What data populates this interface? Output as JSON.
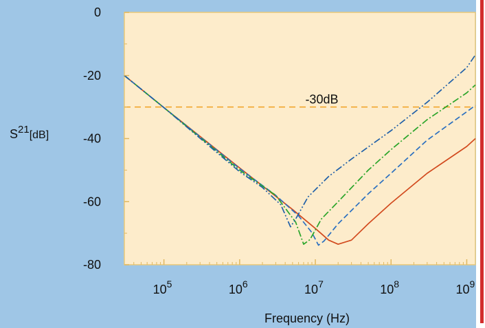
{
  "chart_data": {
    "type": "line",
    "xlabel": "Frequency (Hz)",
    "ylabel": "S21[dB]",
    "ylabel_parts": {
      "base": "S",
      "sup": "21",
      "unit": "[dB]"
    },
    "xscale": "log",
    "xlim": [
      30000,
      1300000000
    ],
    "ylim": [
      -80,
      0
    ],
    "x_ticks": [
      {
        "value": 100000,
        "base": "10",
        "exp": "5"
      },
      {
        "value": 1000000,
        "base": "10",
        "exp": "6"
      },
      {
        "value": 10000000,
        "base": "10",
        "exp": "7"
      },
      {
        "value": 100000000,
        "base": "10",
        "exp": "8"
      },
      {
        "value": 1000000000,
        "base": "10",
        "exp": "9"
      }
    ],
    "y_ticks": [
      0,
      -20,
      -40,
      -60,
      -80
    ],
    "grid": false,
    "reference_line": {
      "y": -30,
      "label": "-30dB",
      "label_x": 15000000,
      "color": "#f0a020"
    },
    "series": [
      {
        "color": "#d24a1e",
        "dash": "solid",
        "points": [
          [
            30000,
            -20
          ],
          [
            100000,
            -30.2
          ],
          [
            1000000,
            -49.3
          ],
          [
            5000000,
            -62.5
          ],
          [
            10000000,
            -68.5
          ],
          [
            15000000,
            -72.2
          ],
          [
            20000000,
            -73.5
          ],
          [
            30000000,
            -72.2
          ],
          [
            50000000,
            -67
          ],
          [
            100000000,
            -60.5
          ],
          [
            300000000,
            -51
          ],
          [
            1000000000,
            -42.5
          ],
          [
            1300000000,
            -40
          ]
        ]
      },
      {
        "color": "#2a6fc0",
        "dash": "8 4",
        "points": [
          [
            30000,
            -20
          ],
          [
            100000,
            -30.2
          ],
          [
            1000000,
            -49.5
          ],
          [
            3000000,
            -58
          ],
          [
            6000000,
            -64.5
          ],
          [
            9000000,
            -69.8
          ],
          [
            11000000,
            -73.8
          ],
          [
            13000000,
            -72.5
          ],
          [
            20000000,
            -67
          ],
          [
            50000000,
            -57.5
          ],
          [
            100000000,
            -51
          ],
          [
            300000000,
            -40.5
          ],
          [
            1000000000,
            -31.5
          ],
          [
            1300000000,
            -29.5
          ]
        ]
      },
      {
        "color": "#2aa52a",
        "dash": "10 3 2 3",
        "points": [
          [
            30000,
            -20
          ],
          [
            100000,
            -30.2
          ],
          [
            1000000,
            -50
          ],
          [
            3000000,
            -58
          ],
          [
            5500000,
            -66.5
          ],
          [
            7000000,
            -73.5
          ],
          [
            8500000,
            -72
          ],
          [
            12000000,
            -65.5
          ],
          [
            20000000,
            -60
          ],
          [
            50000000,
            -50
          ],
          [
            100000000,
            -43.5
          ],
          [
            300000000,
            -34
          ],
          [
            1000000000,
            -25.5
          ],
          [
            1300000000,
            -23
          ]
        ]
      },
      {
        "color": "#1f5fa8",
        "dash": "10 3 2 3 2 3",
        "points": [
          [
            30000,
            -20
          ],
          [
            100000,
            -30.2
          ],
          [
            1000000,
            -50.5
          ],
          [
            2000000,
            -55.5
          ],
          [
            3500000,
            -61
          ],
          [
            4700000,
            -68
          ],
          [
            5500000,
            -65.5
          ],
          [
            8000000,
            -58.5
          ],
          [
            15000000,
            -52
          ],
          [
            30000000,
            -46.5
          ],
          [
            100000000,
            -37.5
          ],
          [
            300000000,
            -28.5
          ],
          [
            1000000000,
            -17.5
          ],
          [
            1300000000,
            -13.5
          ]
        ]
      }
    ]
  }
}
